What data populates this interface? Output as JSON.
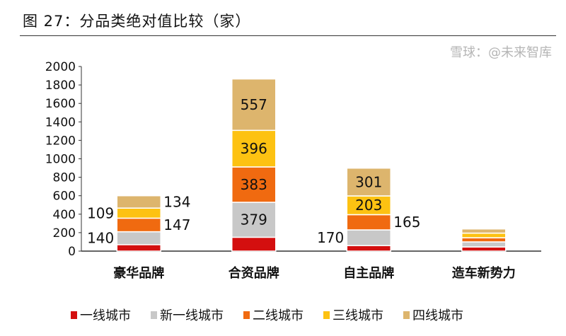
{
  "title": "图 27：分品类绝对值比较（家）",
  "watermark": "雪球：@未来智库",
  "chart_data": {
    "type": "stacked-bar",
    "title": "图 27：分品类绝对值比较（家）",
    "categories": [
      "豪华品牌",
      "合资品牌",
      "自主品牌",
      "造车新势力"
    ],
    "ylim": [
      0,
      2000
    ],
    "yticks": [
      0,
      200,
      400,
      600,
      800,
      1000,
      1200,
      1400,
      1600,
      1800,
      2000
    ],
    "series": [
      {
        "name": "一线城市",
        "color": "#d40f0f",
        "values": [
          70,
          150,
          60,
          45
        ],
        "labels": [
          false,
          false,
          false,
          false
        ]
      },
      {
        "name": "新一线城市",
        "color": "#c8c8c8",
        "values": [
          140,
          379,
          170,
          55
        ],
        "labels": [
          true,
          true,
          true,
          false
        ]
      },
      {
        "name": "二线城市",
        "color": "#f06a10",
        "values": [
          147,
          383,
          165,
          45
        ],
        "labels": [
          true,
          true,
          true,
          false
        ]
      },
      {
        "name": "三线城市",
        "color": "#fdc212",
        "values": [
          109,
          396,
          203,
          50
        ],
        "labels": [
          true,
          true,
          true,
          false
        ]
      },
      {
        "name": "四线城市",
        "color": "#ddb56d",
        "values": [
          134,
          557,
          301,
          45
        ],
        "labels": [
          true,
          true,
          true,
          false
        ]
      }
    ],
    "legend": "bottom"
  }
}
